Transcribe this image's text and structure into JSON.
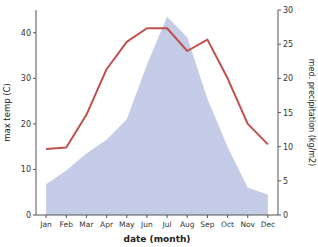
{
  "chart_data": {
    "type": "line",
    "xlabel": "date (month)",
    "ylabel": "max temp (C)",
    "y2label": "med. precipitation (kg/m2)",
    "categories": [
      "Jan",
      "Feb",
      "Mar",
      "Apr",
      "May",
      "Jun",
      "Jul",
      "Aug",
      "Sep",
      "Oct",
      "Nov",
      "Dec"
    ],
    "series": [
      {
        "type": "area",
        "axis": "y2",
        "color": "#c5cce8",
        "values": [
          4.5,
          6.5,
          9,
          11,
          14,
          22,
          29,
          26,
          17,
          10,
          4,
          3
        ]
      },
      {
        "type": "line",
        "color": "#c0504d",
        "values": [
          14.5,
          14.8,
          22,
          32,
          38,
          41,
          41,
          36,
          38.5,
          30,
          20,
          15.5
        ]
      }
    ],
    "ylim": [
      0,
      45
    ],
    "yticks": [
      0,
      10,
      20,
      30,
      40
    ],
    "y2lim": [
      0,
      30
    ],
    "y2ticks": [
      0,
      5,
      10,
      15,
      20,
      25,
      30
    ],
    "grid": false
  }
}
